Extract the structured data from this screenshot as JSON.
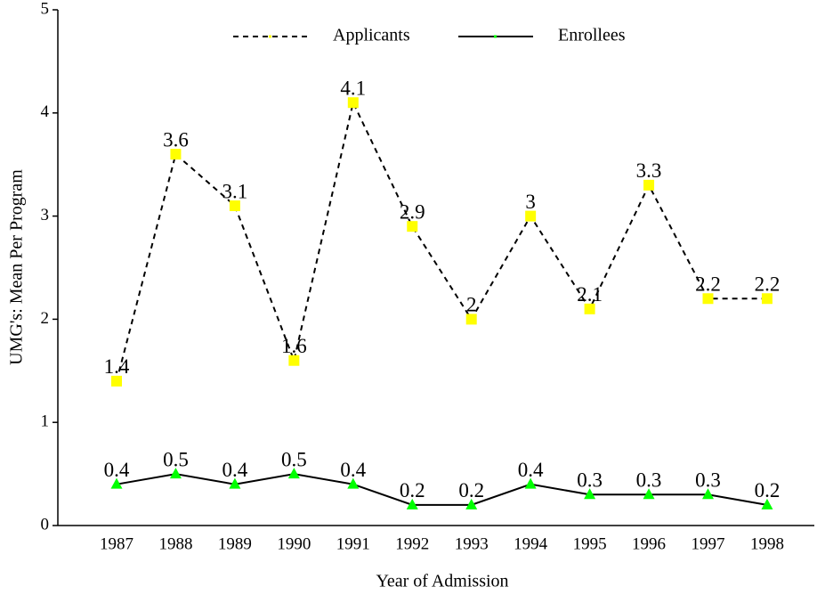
{
  "chart_data": {
    "type": "line",
    "x_label": "Year of Admission",
    "y_label": "UMG's: Mean Per Program",
    "categories": [
      "1987",
      "1988",
      "1989",
      "1990",
      "1991",
      "1992",
      "1993",
      "1994",
      "1995",
      "1996",
      "1997",
      "1998"
    ],
    "series": [
      {
        "name": "Applicants",
        "color": "#ffff00",
        "line_style": "dashed",
        "marker": "square",
        "values": [
          1.4,
          3.6,
          3.1,
          1.6,
          4.1,
          2.9,
          2,
          3,
          2.1,
          3.3,
          2.2,
          2.2
        ]
      },
      {
        "name": "Enrollees",
        "color": "#00ff00",
        "line_style": "solid",
        "marker": "triangle",
        "values": [
          0.4,
          0.5,
          0.4,
          0.5,
          0.4,
          0.2,
          0.2,
          0.4,
          0.3,
          0.3,
          0.3,
          0.2
        ]
      }
    ],
    "ylim": [
      0,
      5
    ],
    "yticks": [
      0,
      1,
      2,
      3,
      4,
      5
    ],
    "grid": false,
    "legend": "top"
  }
}
